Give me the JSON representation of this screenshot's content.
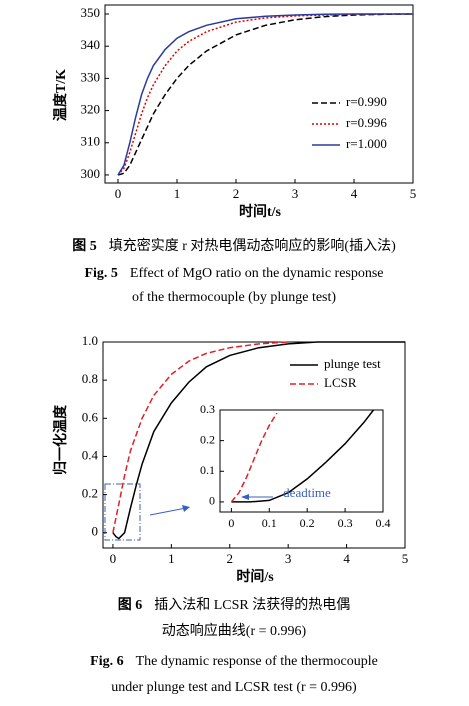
{
  "chart_data": [
    {
      "type": "line",
      "xlabel": "时间t/s",
      "ylabel": "温度T/K",
      "xlim": [
        -0.22,
        5
      ],
      "ylim": [
        297.5,
        352.8
      ],
      "xticks": [
        0,
        1,
        2,
        3,
        4,
        5
      ],
      "yticks": [
        300,
        310,
        320,
        330,
        340,
        350
      ],
      "legend": "lower right",
      "series": [
        {
          "name": "r=0.990",
          "color": "#000000",
          "linestyle": "dashed",
          "x": [
            0,
            0.1,
            0.2,
            0.3,
            0.4,
            0.5,
            0.6,
            0.8,
            1.0,
            1.2,
            1.5,
            2,
            2.5,
            3,
            3.5,
            4,
            4.5,
            5
          ],
          "values": [
            300,
            300.5,
            303,
            307,
            311,
            315,
            319,
            325,
            330,
            334,
            338.5,
            343.5,
            346.5,
            348.2,
            349.2,
            349.7,
            349.9,
            350
          ]
        },
        {
          "name": "r=0.996",
          "color": "#e00000",
          "linestyle": "dotted",
          "x": [
            0,
            0.1,
            0.2,
            0.3,
            0.4,
            0.5,
            0.6,
            0.8,
            1.0,
            1.2,
            1.5,
            2,
            2.5,
            3,
            3.5,
            4,
            4.5,
            5
          ],
          "values": [
            300,
            302,
            307,
            313,
            319,
            324,
            328,
            334,
            338.5,
            341.5,
            344.5,
            347.5,
            348.8,
            349.4,
            349.7,
            349.9,
            350,
            350
          ]
        },
        {
          "name": "r=1.000",
          "color": "#2b3a9c",
          "linestyle": "solid",
          "x": [
            0,
            0.1,
            0.2,
            0.3,
            0.4,
            0.5,
            0.6,
            0.8,
            1.0,
            1.2,
            1.5,
            2,
            2.5,
            3,
            3.5,
            4,
            4.5,
            5
          ],
          "values": [
            300,
            303,
            310,
            318,
            325,
            330,
            334,
            339,
            342.5,
            344.5,
            346.5,
            348.5,
            349.3,
            349.7,
            349.9,
            350,
            350,
            350
          ]
        }
      ]
    },
    {
      "type": "line",
      "xlabel": "时间/s",
      "ylabel": "归一化温度",
      "xlim": [
        -0.17,
        5
      ],
      "ylim": [
        -0.08,
        1.0
      ],
      "xticks": [
        0,
        1,
        2,
        3,
        4,
        5
      ],
      "yticks": [
        0,
        0.2,
        0.4,
        0.6,
        0.8,
        {
          "value": 1,
          "label": "1.0"
        }
      ],
      "legend": "upper right",
      "series": [
        {
          "name": "plunge test",
          "color": "#000000",
          "linestyle": "solid",
          "x": [
            0,
            0.05,
            0.1,
            0.2,
            0.3,
            0.4,
            0.5,
            0.7,
            1.0,
            1.3,
            1.6,
            2,
            2.5,
            3,
            3.5,
            4,
            5
          ],
          "values": [
            0,
            -0.02,
            -0.03,
            0,
            0.13,
            0.25,
            0.36,
            0.53,
            0.68,
            0.79,
            0.87,
            0.93,
            0.97,
            0.99,
            1.0,
            1.0,
            1.0
          ]
        },
        {
          "name": "LCSR",
          "color": "#e0202a",
          "linestyle": "dashed",
          "x": [
            0,
            0.1,
            0.2,
            0.3,
            0.5,
            0.7,
            1.0,
            1.3,
            1.6,
            2,
            2.5,
            3
          ],
          "values": [
            0,
            0.15,
            0.3,
            0.43,
            0.6,
            0.72,
            0.83,
            0.9,
            0.94,
            0.97,
            0.99,
            1.0
          ]
        }
      ]
    },
    {
      "type": "line",
      "annotation": "deadtime",
      "xlim": [
        -0.03,
        0.4
      ],
      "ylim": [
        -0.033,
        0.3
      ],
      "xticks": [
        0,
        0.1,
        0.2,
        0.3,
        0.4
      ],
      "yticks": [
        0,
        0.1,
        0.2,
        0.3
      ],
      "series": [
        {
          "color": "#000000",
          "linestyle": "solid",
          "x": [
            0,
            0.05,
            0.1,
            0.15,
            0.2,
            0.25,
            0.3,
            0.35,
            0.375
          ],
          "values": [
            0,
            0,
            0.005,
            0.03,
            0.075,
            0.13,
            0.19,
            0.26,
            0.3
          ]
        },
        {
          "color": "#e0202a",
          "linestyle": "dashed",
          "x": [
            0,
            0.02,
            0.04,
            0.06,
            0.08,
            0.1,
            0.12
          ],
          "values": [
            0,
            0.03,
            0.08,
            0.14,
            0.2,
            0.25,
            0.29
          ]
        }
      ]
    }
  ],
  "captions": [
    {
      "cn": {
        "label": "图 5",
        "lines": [
          "填充密实度 r 对热电偶动态响应的影响(插入法)"
        ]
      },
      "en": {
        "label": "Fig. 5",
        "lines": [
          "Effect of MgO ratio on the dynamic response",
          "of the thermocouple (by plunge test)"
        ]
      }
    },
    {
      "cn": {
        "label": "图 6",
        "lines": [
          "插入法和 LCSR 法获得的热电偶",
          "动态响应曲线(r = 0.996)"
        ]
      },
      "en": {
        "label": "Fig. 6",
        "lines": [
          "The dynamic response of the thermocouple",
          "under plunge test and LCSR test (r = 0.996)"
        ]
      }
    }
  ]
}
